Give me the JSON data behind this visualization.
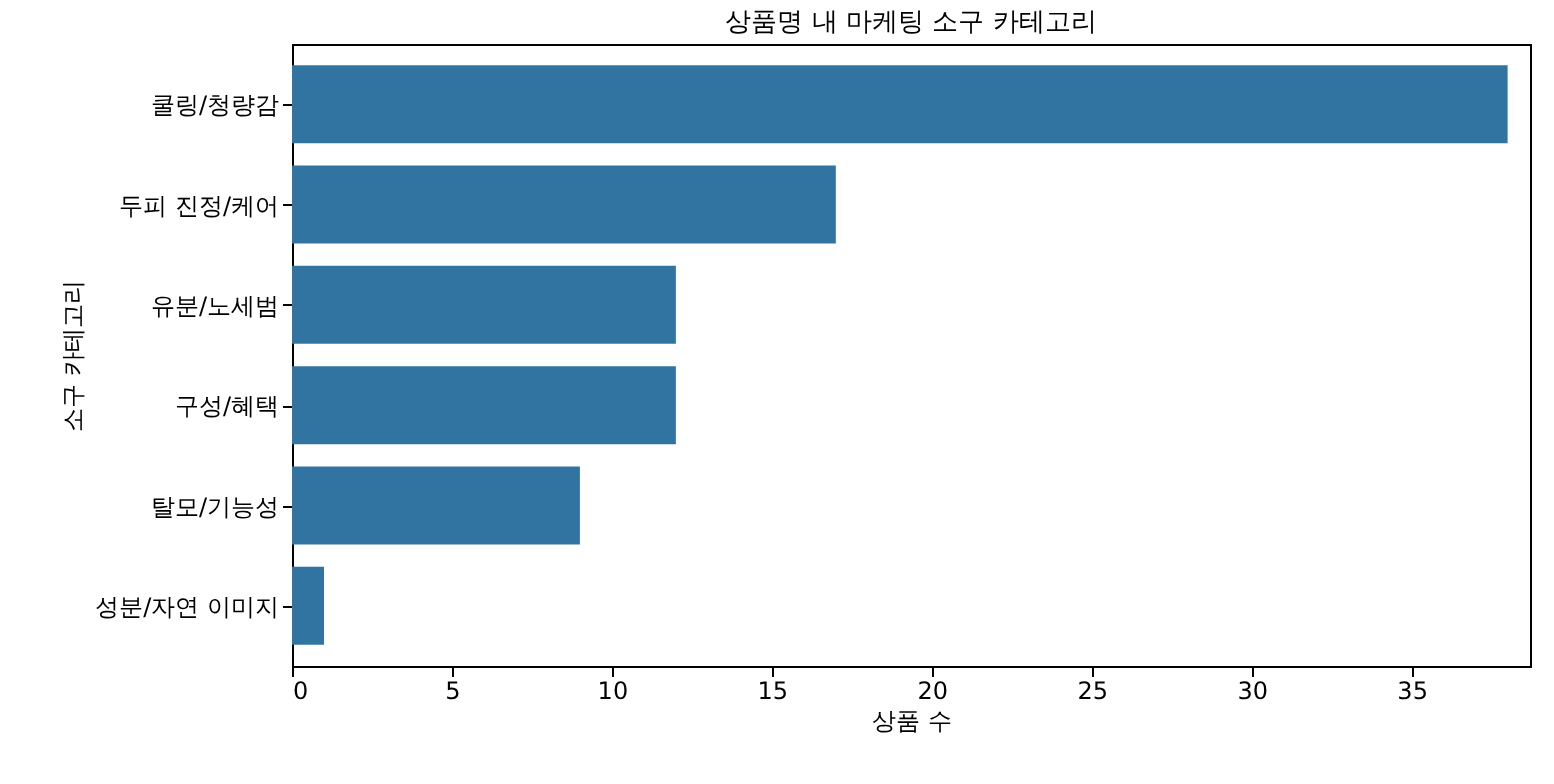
{
  "chart_data": {
    "type": "bar",
    "orientation": "horizontal",
    "title": "상품명 내 마케팅 소구 카테고리",
    "xlabel": "상품 수",
    "ylabel": "소구 카테고리",
    "categories": [
      "쿨링/청량감",
      "두피 진정/케어",
      "유분/노세범",
      "구성/혜택",
      "탈모/기능성",
      "성분/자연 이미지"
    ],
    "values": [
      38,
      17,
      12,
      12,
      9,
      1
    ],
    "color": "#3274a1",
    "xlim": [
      0,
      38.7
    ],
    "xticks": [
      0,
      5,
      10,
      15,
      20,
      25,
      30,
      35
    ],
    "grid": false
  }
}
